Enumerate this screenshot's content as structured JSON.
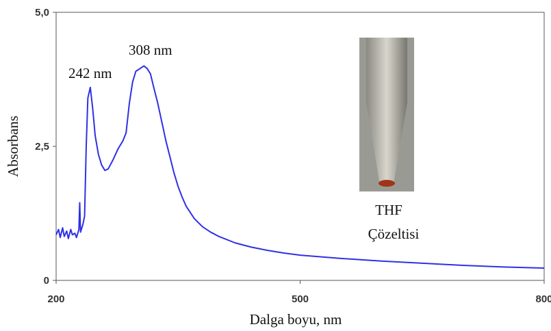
{
  "chart_data": {
    "type": "line",
    "x_label": "Dalga boyu, nm",
    "y_label": "Absorbans",
    "annotations": [
      "242 nm",
      "308 nm"
    ],
    "image_caption": [
      "THF",
      "Çözeltisi"
    ],
    "xlim": [
      200,
      800
    ],
    "ylim": [
      0,
      5
    ],
    "xticks": [
      200,
      500,
      800
    ],
    "yticks": [
      0,
      {
        "value": 2.5,
        "label": "2,5"
      },
      {
        "value": 5,
        "label": "5,0"
      }
    ],
    "series": [
      {
        "color": "#2f2fe6",
        "x": [
          200,
          203,
          205,
          208,
          210,
          213,
          215,
          218,
          220,
          223,
          225,
          228,
          229,
          230,
          233,
          235,
          237,
          239,
          242,
          245,
          248,
          252,
          256,
          260,
          264,
          270,
          276,
          282,
          286,
          290,
          294,
          298,
          303,
          308,
          312,
          316,
          320,
          325,
          330,
          335,
          340,
          345,
          350,
          355,
          360,
          370,
          380,
          390,
          400,
          420,
          440,
          460,
          480,
          500,
          550,
          600,
          650,
          700,
          750,
          800
        ],
        "values": [
          0.85,
          0.95,
          0.8,
          0.98,
          0.82,
          0.92,
          0.78,
          0.95,
          0.85,
          0.88,
          0.8,
          0.95,
          1.45,
          0.9,
          1.05,
          1.2,
          2.5,
          3.4,
          3.6,
          3.2,
          2.7,
          2.35,
          2.15,
          2.05,
          2.08,
          2.25,
          2.45,
          2.6,
          2.75,
          3.3,
          3.7,
          3.9,
          3.95,
          4.0,
          3.95,
          3.85,
          3.6,
          3.3,
          2.95,
          2.6,
          2.3,
          2.0,
          1.75,
          1.55,
          1.38,
          1.15,
          1.0,
          0.9,
          0.82,
          0.7,
          0.62,
          0.56,
          0.51,
          0.47,
          0.41,
          0.36,
          0.32,
          0.28,
          0.25,
          0.23
        ]
      }
    ]
  }
}
